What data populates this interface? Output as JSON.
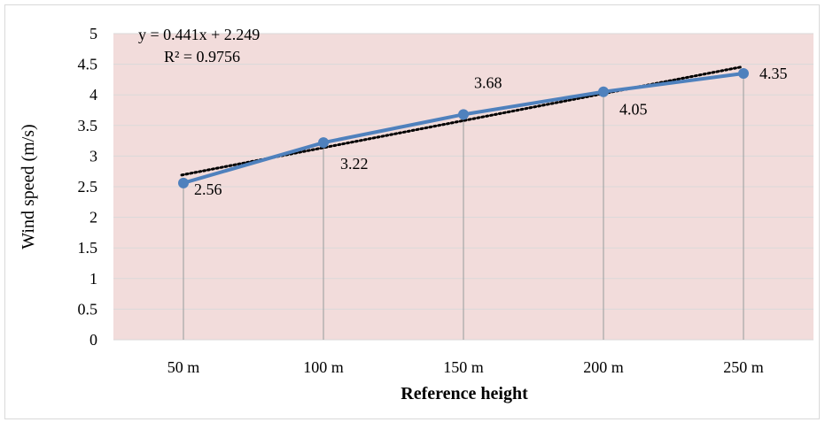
{
  "chart_data": {
    "type": "line",
    "categories": [
      "50 m",
      "100 m",
      "150 m",
      "200 m",
      "250 m"
    ],
    "series": [
      {
        "values": [
          2.56,
          3.22,
          3.68,
          4.05,
          4.35
        ],
        "color": "#4f81bd"
      }
    ],
    "data_labels": [
      "2.56",
      "3.22",
      "3.68",
      "4.05",
      "4.35"
    ],
    "trendline": {
      "type": "linear",
      "slope": 0.441,
      "intercept": 2.249,
      "equation": "y = 0.441x + 2.249",
      "r_squared": "R² = 0.9756",
      "color": "#000000",
      "style": "dotted"
    },
    "xlabel": "Reference height",
    "ylabel": "Wind speed (m/s)",
    "ylim": [
      0,
      5
    ],
    "yticks": [
      "0",
      "0.5",
      "1",
      "1.5",
      "2",
      "2.5",
      "3",
      "3.5",
      "4",
      "4.5",
      "5"
    ],
    "grid": true,
    "drop_lines": true,
    "plot_background": "#f2dcdb",
    "gridline_color": "#d9d9d9"
  }
}
